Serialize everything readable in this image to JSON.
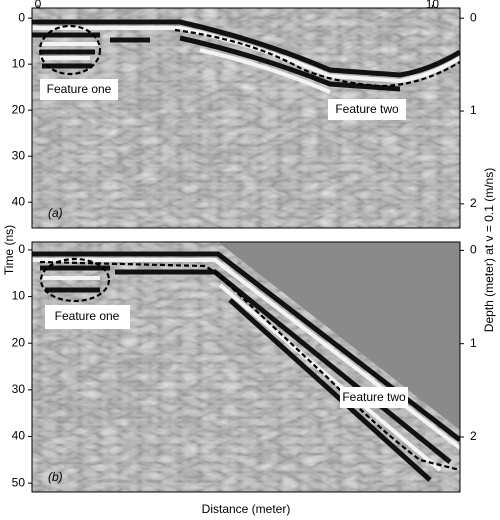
{
  "chart_data": [
    {
      "type": "radargram",
      "annotations": [
        "(a)",
        "Feature one",
        "Feature two"
      ],
      "xlim": [
        -0.15,
        10.7
      ],
      "xticks": [
        0,
        10
      ],
      "ylim": [
        -2.2,
        45.6
      ],
      "y_inverted": true,
      "yticks": [
        0,
        10,
        20,
        30,
        40
      ],
      "y2lim": [
        -0.11,
        2.26
      ],
      "y2ticks": [
        0,
        1,
        2
      ]
    },
    {
      "type": "radargram",
      "annotations": [
        "(b)",
        "Feature one",
        "Feature two"
      ],
      "xlabel": "Distance (meter)",
      "ylabel": "Time (ns)",
      "y2label": "Depth (meter) at v = 0.1 (m/ns)",
      "xlim": [
        -0.15,
        10.7
      ],
      "ylim": [
        -1.7,
        51.9
      ],
      "y_inverted": true,
      "yticks": [
        0,
        10,
        20,
        30,
        40,
        50
      ],
      "y2lim": [
        -0.09,
        2.59
      ],
      "y2ticks": [
        0,
        1,
        2
      ]
    }
  ]
}
